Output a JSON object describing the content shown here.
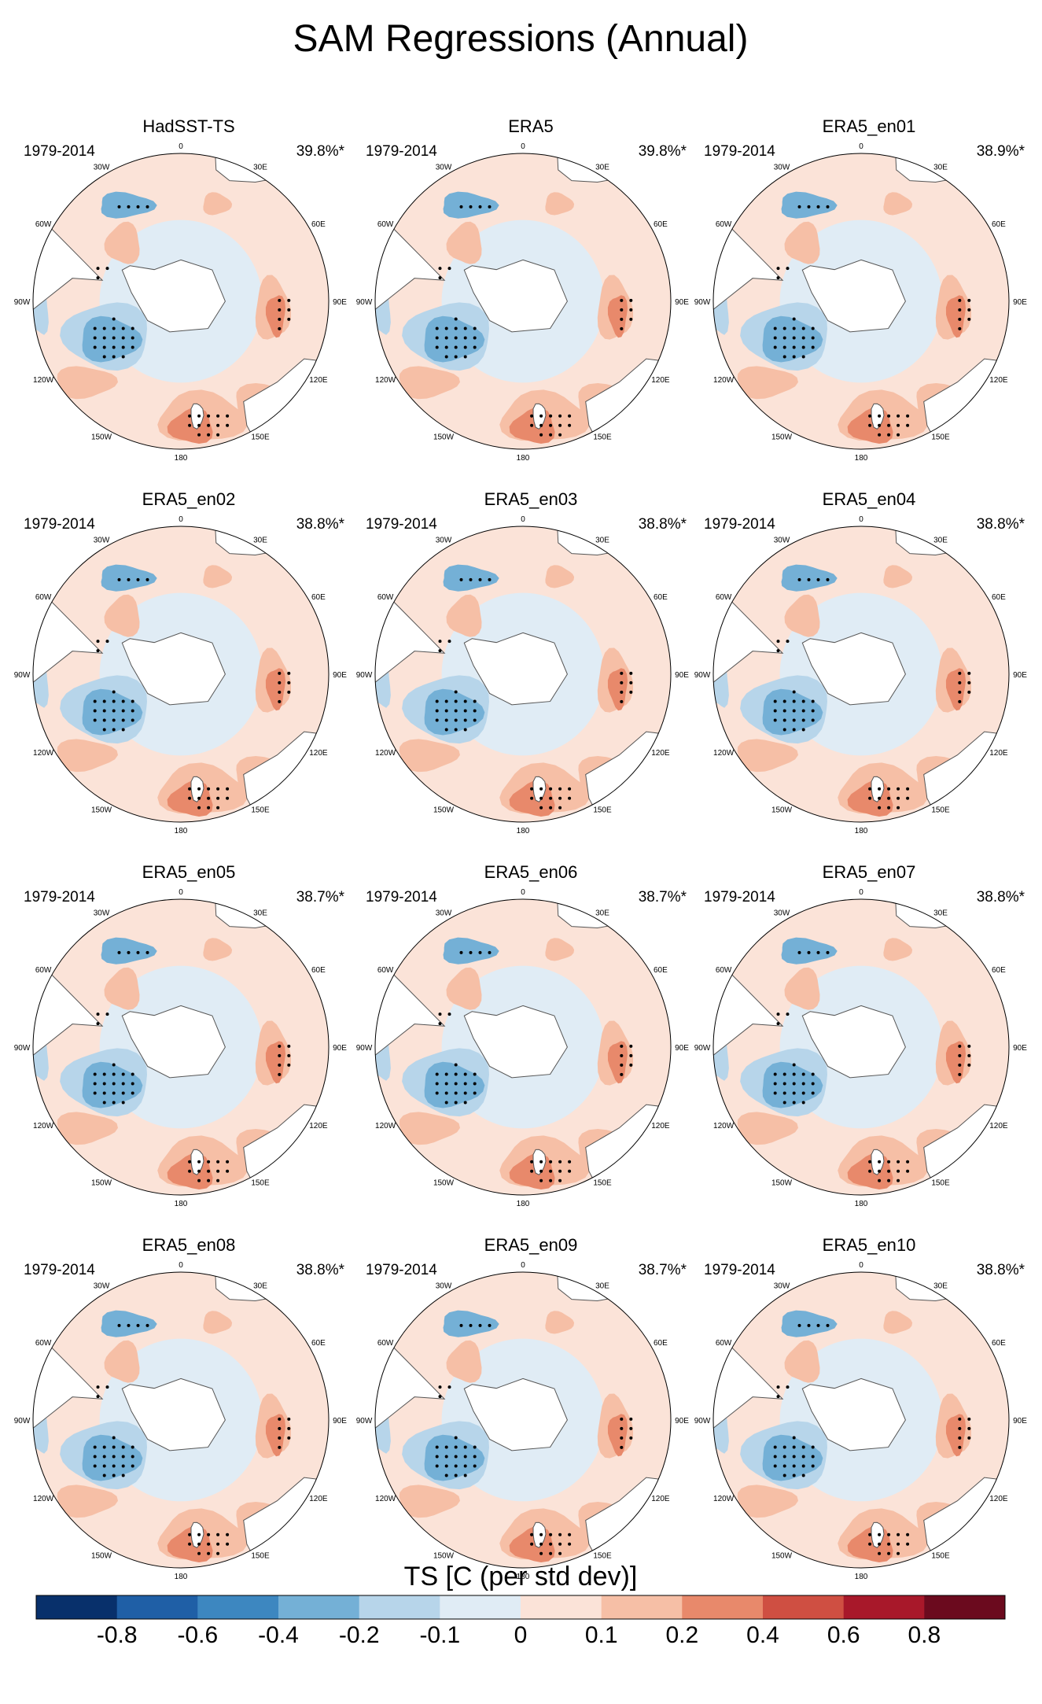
{
  "title": "SAM Regressions (Annual)",
  "chart_data": {
    "type": "heatmap",
    "projection": "south-polar-stereographic",
    "variable": "TS",
    "units": "C (per std dev)",
    "colorbar": {
      "title": "TS [C (per std dev)]",
      "levels": [
        "-0.8",
        "-0.6",
        "-0.4",
        "-0.2",
        "-0.1",
        "0",
        "0.1",
        "0.2",
        "0.4",
        "0.6",
        "0.8"
      ],
      "colors": [
        "#08306b",
        "#1f5fa6",
        "#3d87c0",
        "#74b0d6",
        "#b7d5ea",
        "#e0ecf5",
        "#fbe3d8",
        "#f6bfa6",
        "#e8896b",
        "#cf4f42",
        "#a8182a",
        "#6b0a1e"
      ]
    },
    "lon_labels": [
      "0",
      "30E",
      "60E",
      "90E",
      "120E",
      "150E",
      "180",
      "150W",
      "120W",
      "90W",
      "60W",
      "30W"
    ],
    "panels": [
      {
        "name": "HadSST-TS",
        "years": "1979-2014",
        "pct": "39.8%*"
      },
      {
        "name": "ERA5",
        "years": "1979-2014",
        "pct": "39.8%*"
      },
      {
        "name": "ERA5_en01",
        "years": "1979-2014",
        "pct": "38.9%*"
      },
      {
        "name": "ERA5_en02",
        "years": "1979-2014",
        "pct": "38.8%*"
      },
      {
        "name": "ERA5_en03",
        "years": "1979-2014",
        "pct": "38.8%*"
      },
      {
        "name": "ERA5_en04",
        "years": "1979-2014",
        "pct": "38.8%*"
      },
      {
        "name": "ERA5_en05",
        "years": "1979-2014",
        "pct": "38.7%*"
      },
      {
        "name": "ERA5_en06",
        "years": "1979-2014",
        "pct": "38.7%*"
      },
      {
        "name": "ERA5_en07",
        "years": "1979-2014",
        "pct": "38.8%*"
      },
      {
        "name": "ERA5_en08",
        "years": "1979-2014",
        "pct": "38.8%*"
      },
      {
        "name": "ERA5_en09",
        "years": "1979-2014",
        "pct": "38.7%*"
      },
      {
        "name": "ERA5_en10",
        "years": "1979-2014",
        "pct": "38.8%*"
      }
    ]
  }
}
